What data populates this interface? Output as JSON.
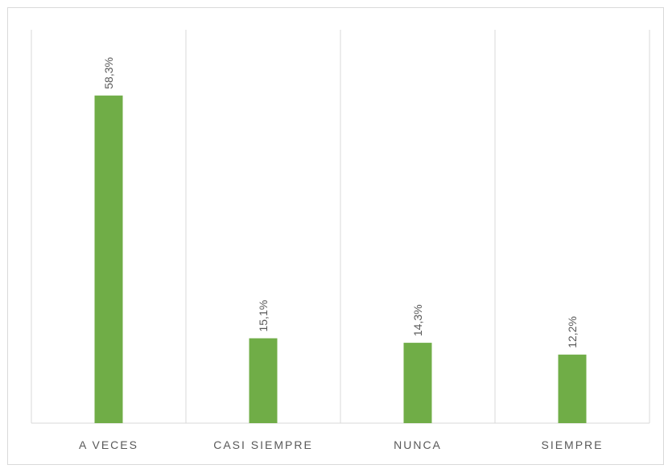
{
  "chart_data": {
    "type": "bar",
    "categories": [
      "A VECES",
      "CASI SIEMPRE",
      "NUNCA",
      "SIEMPRE"
    ],
    "values": [
      58.3,
      15.1,
      14.3,
      12.2
    ],
    "value_labels": [
      "58,3%",
      "15,1%",
      "14,3%",
      "12,2%"
    ],
    "color": "#70ad47",
    "ylim": [
      0,
      70
    ]
  }
}
